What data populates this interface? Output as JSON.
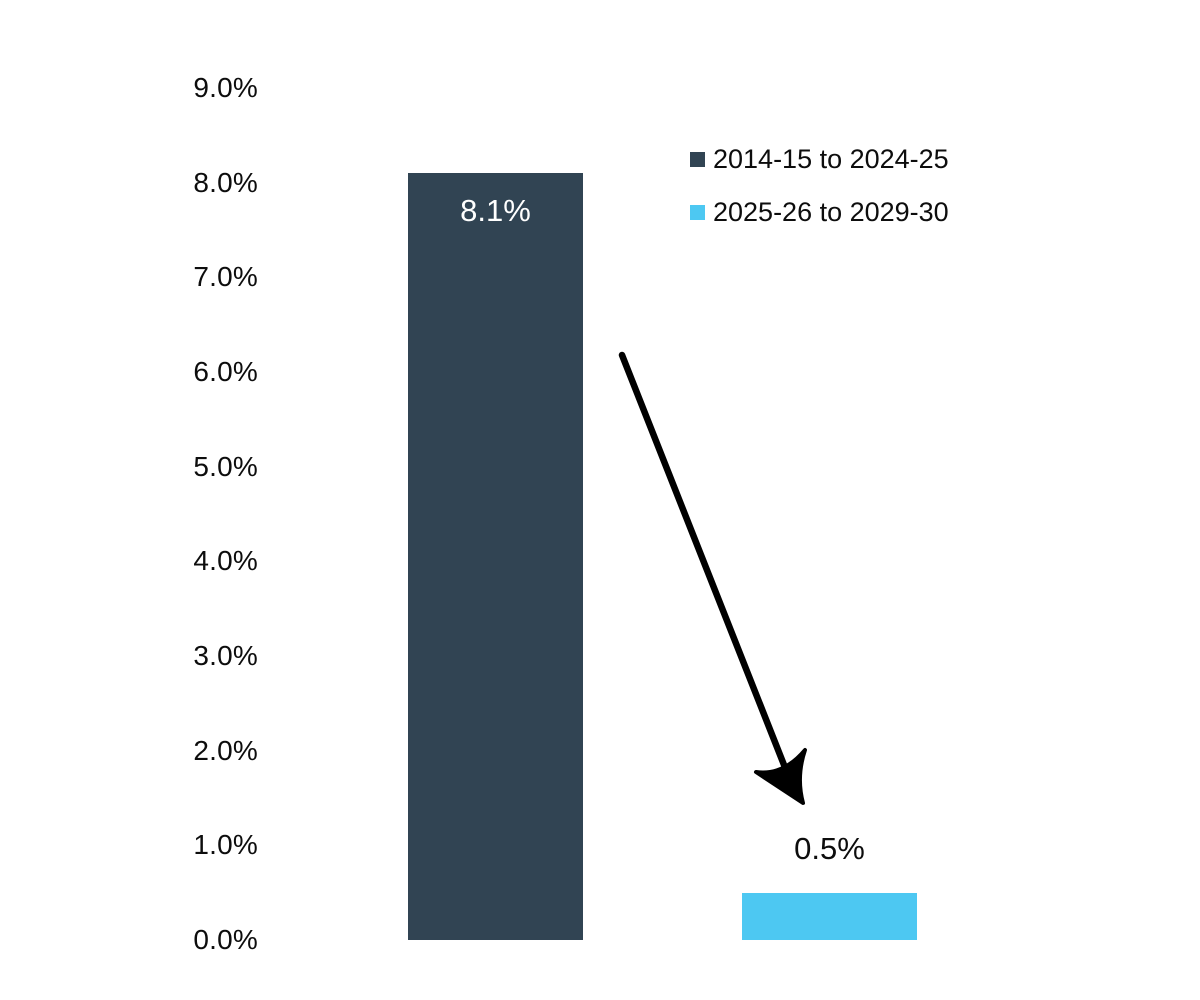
{
  "chart_data": {
    "type": "bar",
    "title": "",
    "xlabel": "",
    "ylabel": "",
    "categories": [
      "2014-15 to 2024-25",
      "2025-26 to 2029-30"
    ],
    "values": [
      8.1,
      0.5
    ],
    "series": [
      {
        "name": "2014-15 to 2024-25",
        "value": 8.1,
        "label": "8.1%",
        "color": "#314453",
        "label_position": "inside-top"
      },
      {
        "name": "2025-26 to 2029-30",
        "value": 0.5,
        "label": "0.5%",
        "color": "#4DC8F2",
        "label_position": "above"
      }
    ],
    "ylim": [
      0,
      9
    ],
    "y_tick_values": [
      9,
      8,
      7,
      6,
      5,
      4,
      3,
      2,
      1,
      0
    ],
    "y_tick_labels": [
      "9.0%",
      "8.0%",
      "7.0%",
      "6.0%",
      "5.0%",
      "4.0%",
      "3.0%",
      "2.0%",
      "1.0%",
      "0.0%"
    ],
    "grid": false,
    "axis_lines": false,
    "legend_position": "upper-right",
    "annotations": [
      {
        "type": "arrow",
        "description": "black arrow from top of 8.1% bar down to 0.5% bar",
        "color": "#000000"
      }
    ]
  },
  "legend": {
    "items": [
      {
        "label": "2014-15 to 2024-25",
        "color": "#314453"
      },
      {
        "label": "2025-26 to 2029-30",
        "color": "#4DC8F2"
      }
    ]
  }
}
